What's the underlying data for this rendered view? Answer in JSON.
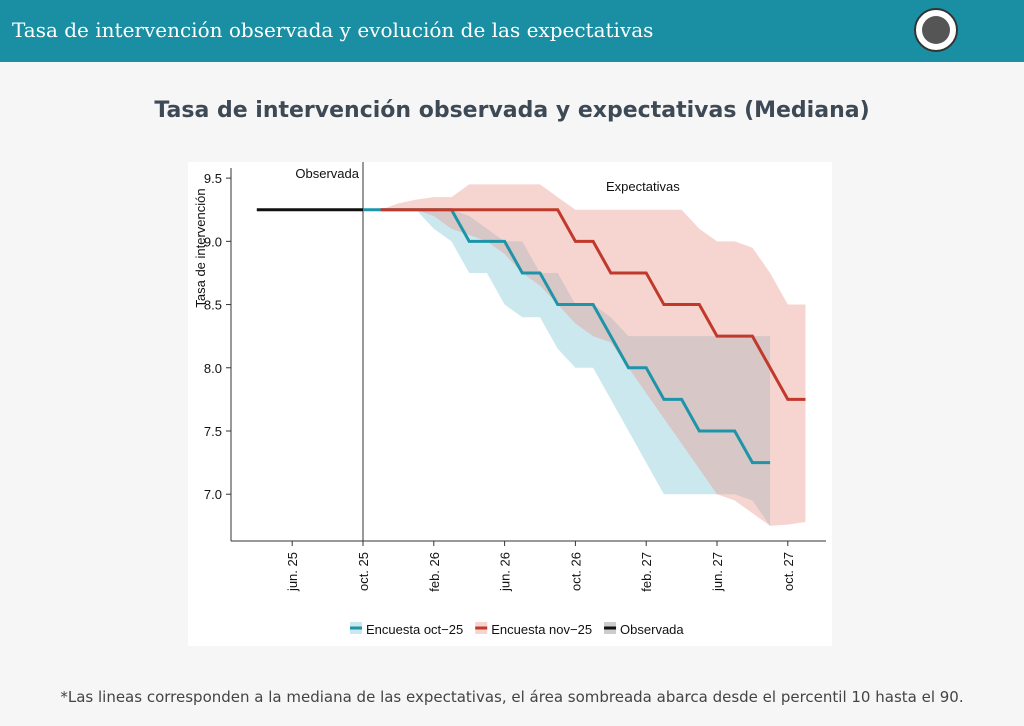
{
  "header": {
    "title": "Tasa de intervención observada y evolución de las expectativas"
  },
  "chart_data": {
    "type": "line",
    "title": "Tasa de intervención observada y expectativas (Mediana)",
    "ylabel": "Tasa de intervención",
    "annotations": [
      "Observada",
      "Expectativas"
    ],
    "categories": [
      null,
      null,
      "jun. 25",
      null,
      null,
      null,
      "oct. 25",
      null,
      null,
      null,
      "feb. 26",
      null,
      null,
      null,
      "jun. 26",
      null,
      null,
      null,
      "oct. 26",
      null,
      null,
      null,
      "feb. 27",
      null,
      null,
      null,
      "jun. 27",
      null,
      null,
      null,
      "oct. 27",
      null
    ],
    "ylim": [
      6.63,
      9.58
    ],
    "yticks": [
      {
        "value": 7,
        "label": "7.0"
      },
      7.5,
      {
        "value": 8,
        "label": "8.0"
      },
      8.5,
      {
        "value": 9,
        "label": "9.0"
      },
      9.5
    ],
    "series": [
      {
        "name": "Encuesta oct−25",
        "color": "#1e94a8",
        "band_color": "rgba(140,205,218,0.45)",
        "values": [
          null,
          null,
          null,
          null,
          null,
          null,
          9.25,
          9.25,
          9.25,
          9.25,
          9.25,
          9.25,
          9.0,
          9.0,
          9.0,
          8.75,
          8.75,
          8.5,
          8.5,
          8.5,
          8.25,
          8.0,
          8.0,
          7.75,
          7.75,
          7.5,
          7.5,
          7.5,
          7.25,
          7.25,
          null,
          null
        ],
        "lower": [
          null,
          null,
          null,
          null,
          null,
          null,
          9.25,
          9.25,
          9.25,
          9.25,
          9.1,
          9.0,
          8.75,
          8.75,
          8.5,
          8.4,
          8.4,
          8.15,
          8.0,
          8.0,
          7.75,
          7.5,
          7.25,
          7.0,
          7.0,
          7.0,
          7.0,
          7.0,
          6.95,
          6.75,
          null,
          null
        ],
        "upper": [
          null,
          null,
          null,
          null,
          null,
          null,
          9.25,
          9.25,
          9.25,
          9.25,
          9.25,
          9.25,
          9.2,
          9.1,
          9.0,
          9.0,
          8.75,
          8.75,
          8.5,
          8.5,
          8.4,
          8.25,
          8.25,
          8.25,
          8.25,
          8.25,
          8.25,
          8.25,
          8.25,
          8.25,
          null,
          null
        ]
      },
      {
        "name": "Encuesta nov−25",
        "color": "#c0392b",
        "band_color": "rgba(232,150,140,0.4)",
        "values": [
          null,
          null,
          null,
          null,
          null,
          null,
          null,
          9.25,
          9.25,
          9.25,
          9.25,
          9.25,
          9.25,
          9.25,
          9.25,
          9.25,
          9.25,
          9.25,
          9.0,
          9.0,
          8.75,
          8.75,
          8.75,
          8.5,
          8.5,
          8.5,
          8.25,
          8.25,
          8.25,
          8.0,
          7.75,
          7.75
        ],
        "lower": [
          null,
          null,
          null,
          null,
          null,
          null,
          null,
          9.25,
          9.25,
          9.25,
          9.2,
          9.1,
          9.05,
          9.0,
          8.9,
          8.75,
          8.65,
          8.5,
          8.35,
          8.25,
          8.2,
          8.0,
          7.8,
          7.6,
          7.4,
          7.2,
          7.0,
          6.95,
          6.85,
          6.75,
          6.76,
          6.78
        ],
        "upper": [
          null,
          null,
          null,
          null,
          null,
          null,
          null,
          9.25,
          9.3,
          9.33,
          9.35,
          9.35,
          9.45,
          9.45,
          9.45,
          9.45,
          9.45,
          9.35,
          9.25,
          9.25,
          9.25,
          9.25,
          9.25,
          9.25,
          9.25,
          9.1,
          9.0,
          9.0,
          8.95,
          8.75,
          8.5,
          8.5
        ]
      },
      {
        "name": "Observada",
        "color": "#111111",
        "values": [
          9.25,
          9.25,
          9.25,
          9.25,
          9.25,
          9.25,
          9.25,
          null,
          null,
          null,
          null,
          null,
          null,
          null,
          null,
          null,
          null,
          null,
          null,
          null,
          null,
          null,
          null,
          null,
          null,
          null,
          null,
          null,
          null,
          null,
          null,
          null
        ]
      }
    ]
  },
  "footnote": "*Las lineas corresponden a la mediana de las expectativas, el área sombreada abarca desde el percentil 10 hasta el 90."
}
